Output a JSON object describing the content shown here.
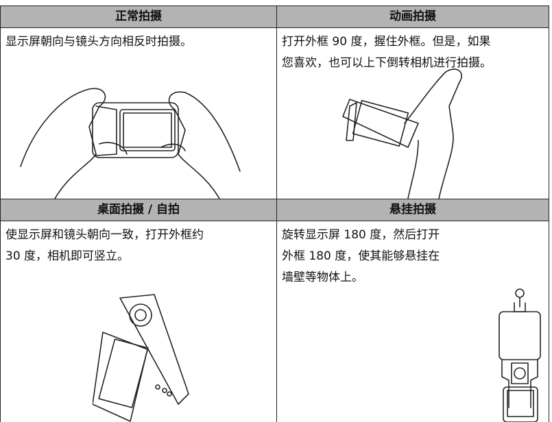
{
  "sections": [
    {
      "title": "正常拍摄",
      "lines": [
        "显示屏朝向与镜头方向相反时拍摄。"
      ]
    },
    {
      "title": "动画拍摄",
      "lines": [
        "打开外框 90 度，握住外框。但是，如果",
        "您喜欢，也可以上下倒转相机进行拍摄。"
      ]
    },
    {
      "title": "桌面拍摄 / 自拍",
      "lines": [
        "使显示屏和镜头朝向一致，打开外框约",
        "30 度，相机即可竖立。"
      ]
    },
    {
      "title": "悬挂拍摄",
      "lines": [
        "旋转显示屏 180 度，然后打开",
        "外框 180 度，使其能够悬挂在",
        "墙壁等物体上。"
      ]
    }
  ]
}
